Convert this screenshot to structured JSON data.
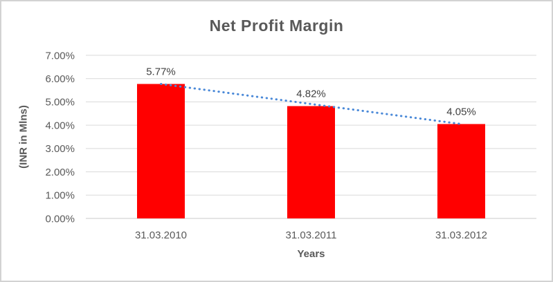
{
  "frame": {
    "background": "#ffffff",
    "border_color": "#d2d2d2"
  },
  "chart_data": {
    "type": "bar",
    "title": "Net Profit Margin",
    "xlabel": "Years",
    "ylabel": "(INR in Mlns)",
    "categories": [
      "31.03.2010",
      "31.03.2011",
      "31.03.2012"
    ],
    "values": [
      5.77,
      4.82,
      4.05
    ],
    "data_labels": [
      "5.77%",
      "4.82%",
      "4.05%"
    ],
    "ylim": [
      0,
      7
    ],
    "ytick_step": 1,
    "ytick_labels": [
      "0.00%",
      "1.00%",
      "2.00%",
      "3.00%",
      "4.00%",
      "5.00%",
      "6.00%",
      "7.00%"
    ],
    "grid": true,
    "legend": "none",
    "bar_color": "#ff0000",
    "trendline": {
      "type": "linear",
      "style": "dotted",
      "color": "#4a89d8",
      "from_value": 5.77,
      "to_value": 4.05
    },
    "colors": {
      "grid": "#d9d9d9",
      "axis_line": "#c9c9c9",
      "title_text": "#595959",
      "tick_text": "#595959",
      "data_label_text": "#404040"
    }
  }
}
